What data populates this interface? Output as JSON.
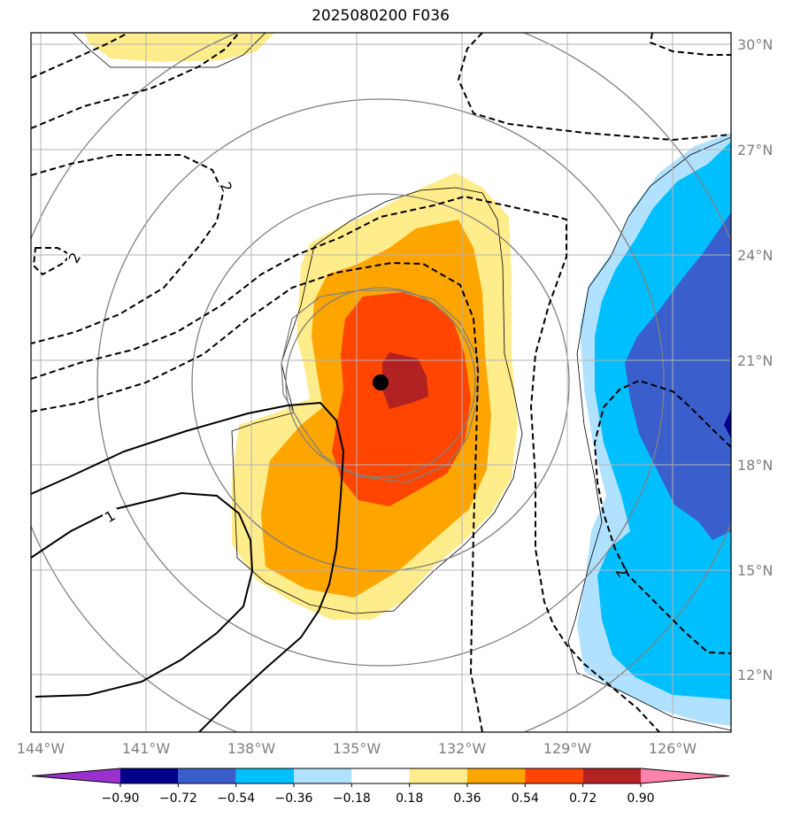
{
  "title": "2025080200 F036",
  "longitude_labels": [
    "144°W",
    "141°W",
    "138°W",
    "135°W",
    "132°W",
    "129°W",
    "126°W"
  ],
  "latitude_labels": [
    "30°N",
    "27°N",
    "24°N",
    "21°N",
    "18°N",
    "15°N",
    "12°N"
  ],
  "contour_labels": [
    "2",
    "2",
    "1",
    "2"
  ],
  "colorbar": {
    "ticks": [
      "−0.90",
      "−0.72",
      "−0.54",
      "−0.36",
      "−0.18",
      "0.18",
      "0.36",
      "0.54",
      "0.72",
      "0.90"
    ],
    "colors": [
      "#9932cc",
      "#00008b",
      "#3a5fcd",
      "#00bfff",
      "#b0e2ff",
      "#ffffff",
      "#ffec8b",
      "#ffa500",
      "#ff4500",
      "#b22222",
      "#ff82ab"
    ]
  },
  "fill_colors": {
    "pos_036": "#ffec8b",
    "pos_054": "#ffa500",
    "pos_072": "#ff4500",
    "pos_090": "#b22222",
    "neg_018": "#b0e2ff",
    "neg_036": "#00bfff",
    "neg_054": "#3a5fcd",
    "neg_072": "#00008b"
  },
  "center_marker": "storm-center-dot"
}
